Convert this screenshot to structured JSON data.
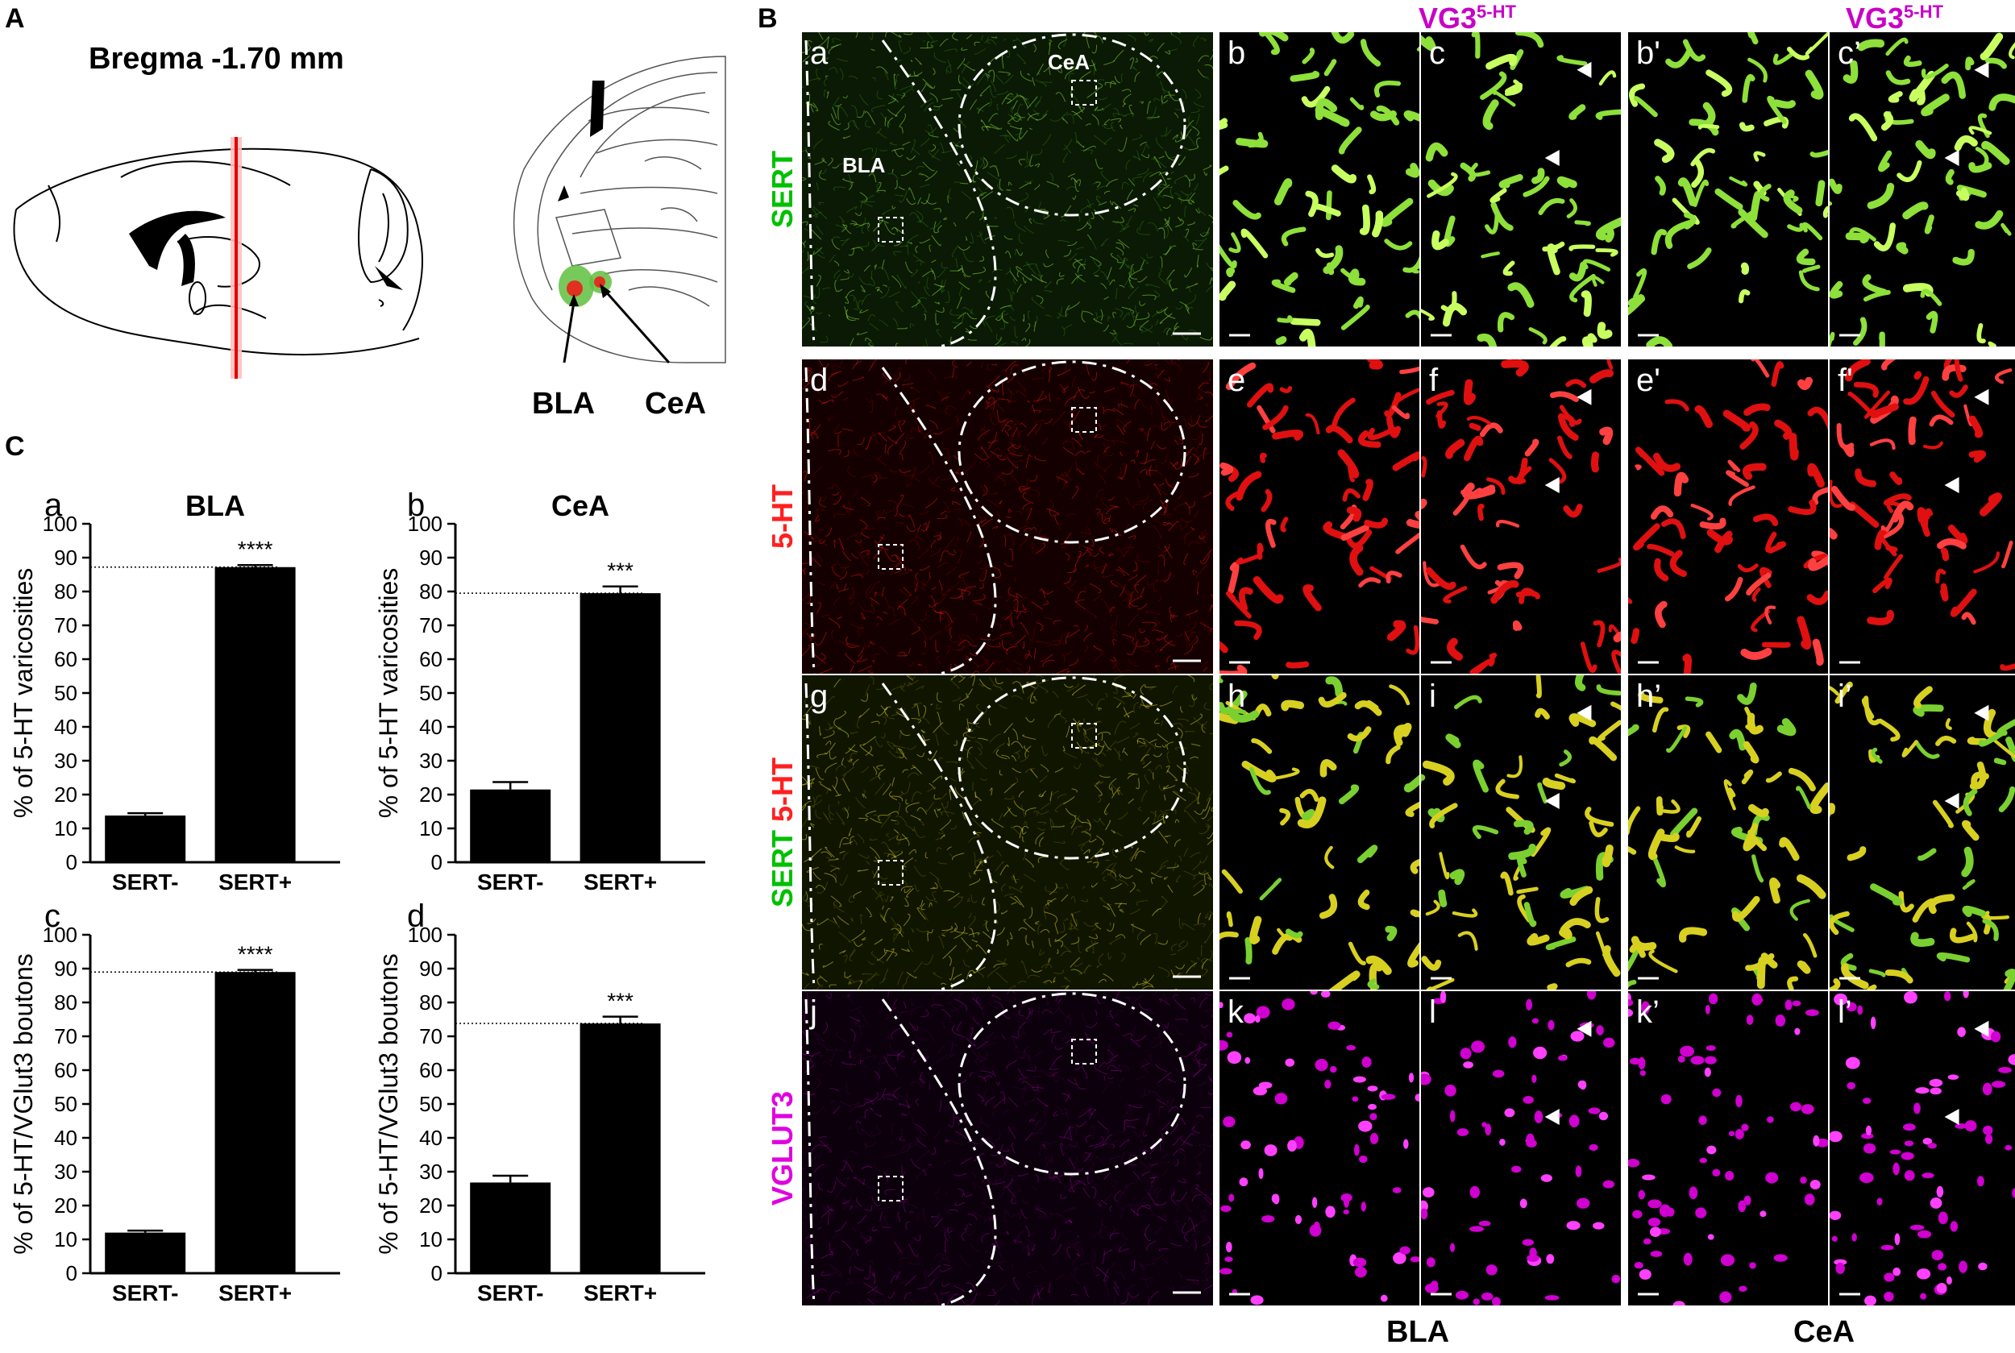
{
  "figure": {
    "panel_A": {
      "letter": "A",
      "bregma": "Bregma -1.70 mm",
      "labels": [
        "BLA",
        "CeA"
      ]
    },
    "panel_B": {
      "letter": "B",
      "col_heads": [
        {
          "text": "VG3",
          "sup": "5-HT"
        },
        {
          "text": "VG3",
          "sup": "5-HT"
        }
      ],
      "row_labels": [
        {
          "parts": [
            {
              "text": "SERT",
              "color": "#00c000"
            }
          ]
        },
        {
          "parts": [
            {
              "text": "5-HT",
              "color": "#ff2020"
            }
          ]
        },
        {
          "parts": [
            {
              "text": "SERT ",
              "color": "#00c000"
            },
            {
              "text": "5-HT",
              "color": "#ff2020"
            }
          ]
        },
        {
          "parts": [
            {
              "text": "VGLUT3",
              "color": "#e000e0"
            }
          ]
        }
      ],
      "sub_letters": [
        [
          "a",
          "b",
          "c",
          "b'",
          "c’"
        ],
        [
          "d",
          "e",
          "f",
          "e'",
          "f'"
        ],
        [
          "g",
          "h",
          "i",
          "h’",
          "i’"
        ],
        [
          "j",
          "k",
          "l",
          "k’",
          "l’"
        ]
      ],
      "region_labels": {
        "bla": "BLA",
        "cea": "CeA"
      },
      "bottom_labels": [
        "BLA",
        "CeA"
      ]
    },
    "panel_C": {
      "letter": "C",
      "colors": {
        "bar": "#000000"
      }
    }
  },
  "chart_data": [
    {
      "type": "bar",
      "sub_letter": "a",
      "title": "BLA",
      "ylabel": "% of 5-HT varicosities",
      "categories": [
        "SERT-",
        "SERT+"
      ],
      "values": [
        13.8,
        87.2
      ],
      "errors": [
        0.7,
        0.6
      ],
      "significance": "****",
      "ylim": [
        0,
        100
      ],
      "yticks": [
        0,
        10,
        20,
        30,
        40,
        50,
        60,
        70,
        80,
        90,
        100
      ],
      "reference_line": 87.2
    },
    {
      "type": "bar",
      "sub_letter": "b",
      "title": "CeA",
      "ylabel": "% of 5-HT varicosities",
      "categories": [
        "SERT-",
        "SERT+"
      ],
      "values": [
        21.5,
        79.5
      ],
      "errors": [
        2.2,
        2.0
      ],
      "significance": "***",
      "ylim": [
        0,
        100
      ],
      "yticks": [
        0,
        10,
        20,
        30,
        40,
        50,
        60,
        70,
        80,
        90,
        100
      ],
      "reference_line": 79.5
    },
    {
      "type": "bar",
      "sub_letter": "c",
      "title": "",
      "ylabel": "% of 5-HT/VGlut3 boutons",
      "categories": [
        "SERT-",
        "SERT+"
      ],
      "values": [
        12.0,
        89.0
      ],
      "errors": [
        0.6,
        0.6
      ],
      "significance": "****",
      "ylim": [
        0,
        100
      ],
      "yticks": [
        0,
        10,
        20,
        30,
        40,
        50,
        60,
        70,
        80,
        90,
        100
      ],
      "reference_line": 89.0
    },
    {
      "type": "bar",
      "sub_letter": "d",
      "title": "",
      "ylabel": "% of 5-HT/VGlut3 boutons",
      "categories": [
        "SERT-",
        "SERT+"
      ],
      "values": [
        26.8,
        73.8
      ],
      "errors": [
        2.0,
        2.0
      ],
      "significance": "***",
      "ylim": [
        0,
        100
      ],
      "yticks": [
        0,
        10,
        20,
        30,
        40,
        50,
        60,
        70,
        80,
        90,
        100
      ],
      "reference_line": 73.8
    }
  ]
}
